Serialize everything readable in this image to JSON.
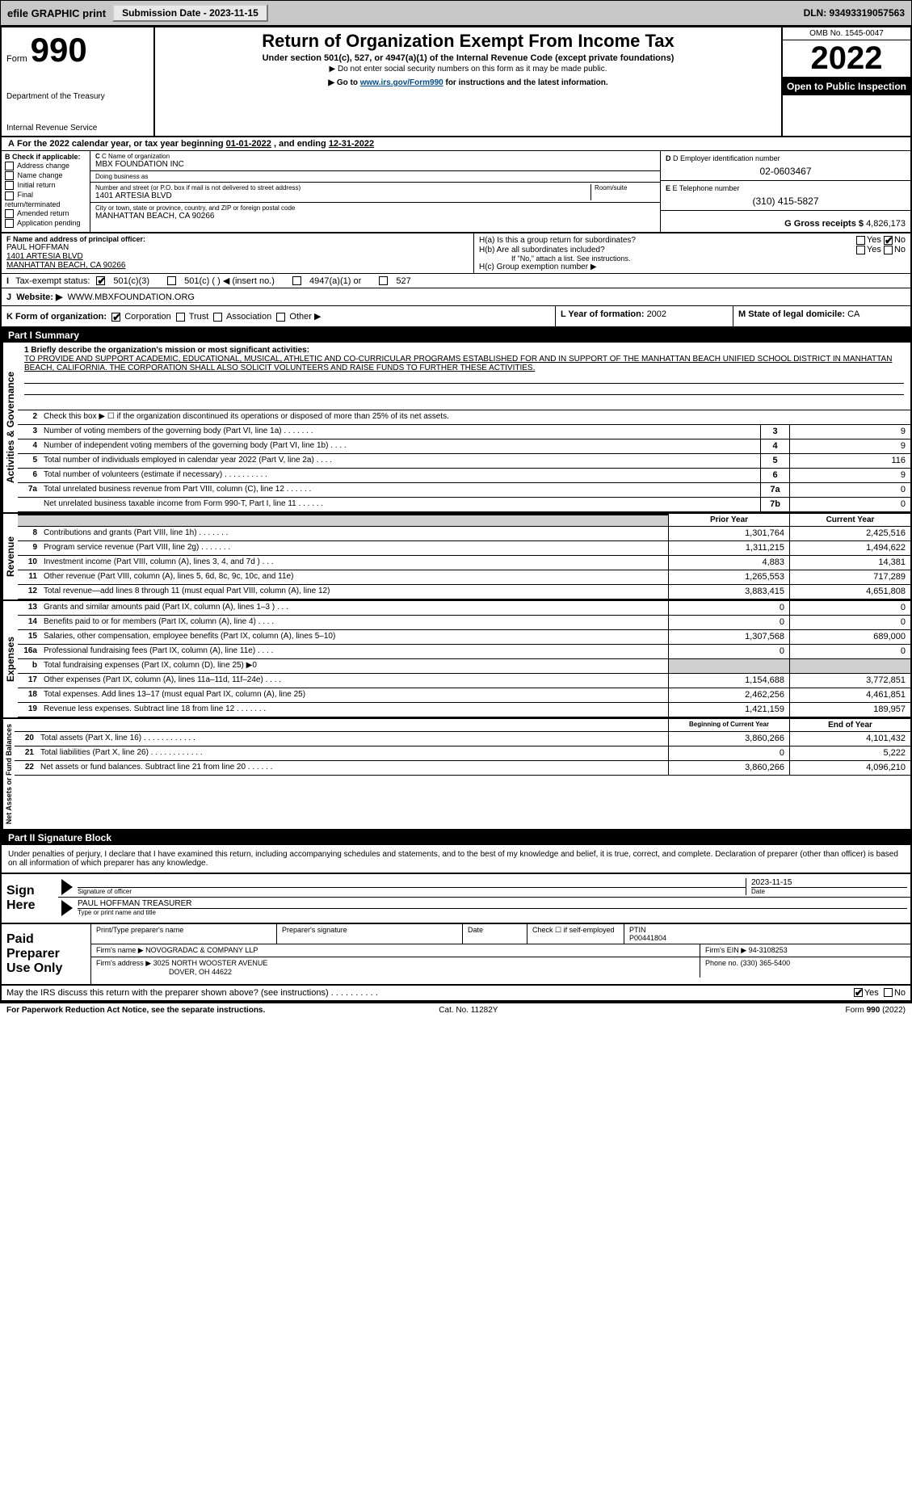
{
  "topbar": {
    "efile_label": "efile GRAPHIC print",
    "submission_btn": "Submission Date - 2023-11-15",
    "dln": "DLN: 93493319057563"
  },
  "header": {
    "form_label": "Form",
    "form_number": "990",
    "title": "Return of Organization Exempt From Income Tax",
    "subtitle": "Under section 501(c), 527, or 4947(a)(1) of the Internal Revenue Code (except private foundations)",
    "ssn_note": "▶ Do not enter social security numbers on this form as it may be made public.",
    "goto_prefix": "▶ Go to ",
    "goto_link": "www.irs.gov/Form990",
    "goto_suffix": " for instructions and the latest information.",
    "dept": "Department of the Treasury",
    "irs": "Internal Revenue Service",
    "omb": "OMB No. 1545-0047",
    "year": "2022",
    "open": "Open to Public Inspection"
  },
  "period": {
    "prefix_a": "A",
    "text": "For the 2022 calendar year, or tax year beginning ",
    "begin": "01-01-2022",
    "mid": " , and ending ",
    "end": "12-31-2022"
  },
  "checkB": {
    "label": "B Check if applicable:",
    "items": [
      "Address change",
      "Name change",
      "Initial return",
      "Final return/terminated",
      "Amended return",
      "Application pending"
    ]
  },
  "entity": {
    "name_label": "C Name of organization",
    "name": "MBX FOUNDATION INC",
    "dba_label": "Doing business as",
    "dba": "",
    "street_label": "Number and street (or P.O. box if mail is not delivered to street address)",
    "room_label": "Room/suite",
    "street": "1401 ARTESIA BLVD",
    "city_label": "City or town, state or province, country, and ZIP or foreign postal code",
    "city": "MANHATTAN BEACH, CA  90266",
    "ein_label": "D Employer identification number",
    "ein": "02-0603467",
    "phone_label": "E Telephone number",
    "phone": "(310) 415-5827",
    "gross_label": "G Gross receipts $ ",
    "gross": "4,826,173"
  },
  "officer": {
    "f_label": "F Name and address of principal officer:",
    "name": "PAUL HOFFMAN",
    "street": "1401 ARTESIA BLVD",
    "city": "MANHATTAN BEACH, CA  90266",
    "ha_label": "H(a)  Is this a group return for subordinates?",
    "hb_label": "H(b)  Are all subordinates included?",
    "hb_note": "If \"No,\" attach a list. See instructions.",
    "hc_label": "H(c)  Group exemption number ▶",
    "yes": "Yes",
    "no": "No"
  },
  "status": {
    "i_label": "I",
    "tax_exempt": "Tax-exempt status:",
    "c3": "501(c)(3)",
    "c_blank": "501(c) (   ) ◀ (insert no.)",
    "a1": "4947(a)(1) or",
    "s527": "527"
  },
  "website": {
    "j_label": "J",
    "label": "Website: ▶",
    "value": "WWW.MBXFOUNDATION.ORG"
  },
  "korg": {
    "k_label": "K Form of organization:",
    "corp": "Corporation",
    "trust": "Trust",
    "assoc": "Association",
    "other": "Other ▶",
    "l_label": "L Year of formation: ",
    "l_value": "2002",
    "m_label": "M State of legal domicile: ",
    "m_value": "CA"
  },
  "part1_header": "Part I      Summary",
  "governance": {
    "vert": "Activities & Governance",
    "line1_label": "1  Briefly describe the organization's mission or most significant activities:",
    "mission": "TO PROVIDE AND SUPPORT ACADEMIC, EDUCATIONAL, MUSICAL, ATHLETIC AND CO-CURRICULAR PROGRAMS ESTABLISHED FOR AND IN SUPPORT OF THE MANHATTAN BEACH UNIFIED SCHOOL DISTRICT IN MANHATTAN BEACH, CALIFORNIA. THE CORPORATION SHALL ALSO SOLICIT VOLUNTEERS AND RAISE FUNDS TO FURTHER THESE ACTIVITIES.",
    "line2": "Check this box ▶ ☐ if the organization discontinued its operations or disposed of more than 25% of its net assets.",
    "rows": [
      {
        "n": "3",
        "t": "Number of voting members of the governing body (Part VI, line 1a)  .    .    .    .    .    .    .",
        "b": "3",
        "v": "9"
      },
      {
        "n": "4",
        "t": "Number of independent voting members of the governing body (Part VI, line 1b)   .    .    .    .",
        "b": "4",
        "v": "9"
      },
      {
        "n": "5",
        "t": "Total number of individuals employed in calendar year 2022 (Part V, line 2a)   .    .    .    .",
        "b": "5",
        "v": "116"
      },
      {
        "n": "6",
        "t": "Total number of volunteers (estimate if necessary)    .    .    .    .    .    .    .    .    .    .",
        "b": "6",
        "v": "9"
      },
      {
        "n": "7a",
        "t": "Total unrelated business revenue from Part VIII, column (C), line 12   .    .    .    .    .    .",
        "b": "7a",
        "v": "0"
      },
      {
        "n": "",
        "t": "Net unrelated business taxable income from Form 990-T, Part I, line 11   .    .    .    .    .    .",
        "b": "7b",
        "v": "0"
      }
    ]
  },
  "revenue": {
    "vert": "Revenue",
    "col_prior": "Prior Year",
    "col_current": "Current Year",
    "rows": [
      {
        "n": "8",
        "t": "Contributions and grants (Part VIII, line 1h)   .    .    .    .    .    .    .",
        "p": "1,301,764",
        "c": "2,425,516"
      },
      {
        "n": "9",
        "t": "Program service revenue (Part VIII, line 2g)   .    .    .    .    .    .    .",
        "p": "1,311,215",
        "c": "1,494,622"
      },
      {
        "n": "10",
        "t": "Investment income (Part VIII, column (A), lines 3, 4, and 7d )   .    .    .",
        "p": "4,883",
        "c": "14,381"
      },
      {
        "n": "11",
        "t": "Other revenue (Part VIII, column (A), lines 5, 6d, 8c, 9c, 10c, and 11e)",
        "p": "1,265,553",
        "c": "717,289"
      },
      {
        "n": "12",
        "t": "Total revenue—add lines 8 through 11 (must equal Part VIII, column (A), line 12)",
        "p": "3,883,415",
        "c": "4,651,808"
      }
    ]
  },
  "expenses": {
    "vert": "Expenses",
    "rows": [
      {
        "n": "13",
        "t": "Grants and similar amounts paid (Part IX, column (A), lines 1–3 )  .    .    .",
        "p": "0",
        "c": "0"
      },
      {
        "n": "14",
        "t": "Benefits paid to or for members (Part IX, column (A), line 4)   .    .    .    .",
        "p": "0",
        "c": "0"
      },
      {
        "n": "15",
        "t": "Salaries, other compensation, employee benefits (Part IX, column (A), lines 5–10)",
        "p": "1,307,568",
        "c": "689,000"
      },
      {
        "n": "16a",
        "t": "Professional fundraising fees (Part IX, column (A), line 11e)   .    .    .    .",
        "p": "0",
        "c": "0"
      },
      {
        "n": "b",
        "t": "Total fundraising expenses (Part IX, column (D), line 25) ▶0",
        "p": "",
        "c": "",
        "shaded": true
      },
      {
        "n": "17",
        "t": "Other expenses (Part IX, column (A), lines 11a–11d, 11f–24e)   .    .    .    .",
        "p": "1,154,688",
        "c": "3,772,851"
      },
      {
        "n": "18",
        "t": "Total expenses. Add lines 13–17 (must equal Part IX, column (A), line 25)",
        "p": "2,462,256",
        "c": "4,461,851"
      },
      {
        "n": "19",
        "t": "Revenue less expenses. Subtract line 18 from line 12  .    .    .    .    .    .    .",
        "p": "1,421,159",
        "c": "189,957"
      }
    ]
  },
  "netassets": {
    "vert": "Net Assets or Fund Balances",
    "col_begin": "Beginning of Current Year",
    "col_end": "End of Year",
    "rows": [
      {
        "n": "20",
        "t": "Total assets (Part X, line 16)   .    .    .    .    .    .    .    .    .    .    .    .",
        "p": "3,860,266",
        "c": "4,101,432"
      },
      {
        "n": "21",
        "t": "Total liabilities (Part X, line 26)   .    .    .    .    .    .    .    .    .    .    .    .",
        "p": "0",
        "c": "5,222"
      },
      {
        "n": "22",
        "t": "Net assets or fund balances. Subtract line 21 from line 20    .    .    .    .    .    .",
        "p": "3,860,266",
        "c": "4,096,210"
      }
    ]
  },
  "part2_header": "Part II     Signature Block",
  "sig": {
    "declaration": "Under penalties of perjury, I declare that I have examined this return, including accompanying schedules and statements, and to the best of my knowledge and belief, it is true, correct, and complete. Declaration of preparer (other than officer) is based on all information of which preparer has any knowledge.",
    "sign_here": "Sign Here",
    "sig_officer": "Signature of officer",
    "date": "Date",
    "sig_date": "2023-11-15",
    "name_title": "PAUL HOFFMAN  TREASURER",
    "name_title_label": "Type or print name and title"
  },
  "preparer": {
    "label": "Paid Preparer Use Only",
    "print_name_label": "Print/Type preparer's name",
    "sig_label": "Preparer's signature",
    "date_label": "Date",
    "check_self": "Check ☐ if self-employed",
    "ptin_label": "PTIN",
    "ptin": "P00441804",
    "firm_name_label": "Firm's name    ▶",
    "firm_name": "NOVOGRADAC & COMPANY LLP",
    "firm_ein_label": "Firm's EIN ▶",
    "firm_ein": "94-3108253",
    "firm_addr_label": "Firm's address ▶",
    "firm_addr1": "3025 NORTH WOOSTER AVENUE",
    "firm_addr2": "DOVER, OH  44622",
    "phone_label": "Phone no.",
    "phone": "(330) 365-5400"
  },
  "discuss": {
    "text": "May the IRS discuss this return with the preparer shown above? (see instructions)   .    .    .    .    .    .    .    .    .    .",
    "yes": "Yes",
    "no": "No"
  },
  "footer": {
    "left": "For Paperwork Reduction Act Notice, see the separate instructions.",
    "mid": "Cat. No. 11282Y",
    "right": "Form 990 (2022)"
  },
  "colors": {
    "topbar_bg": "#c8c8c8",
    "black": "#000000",
    "link": "#004b8d",
    "shaded": "#d0d0d0"
  }
}
